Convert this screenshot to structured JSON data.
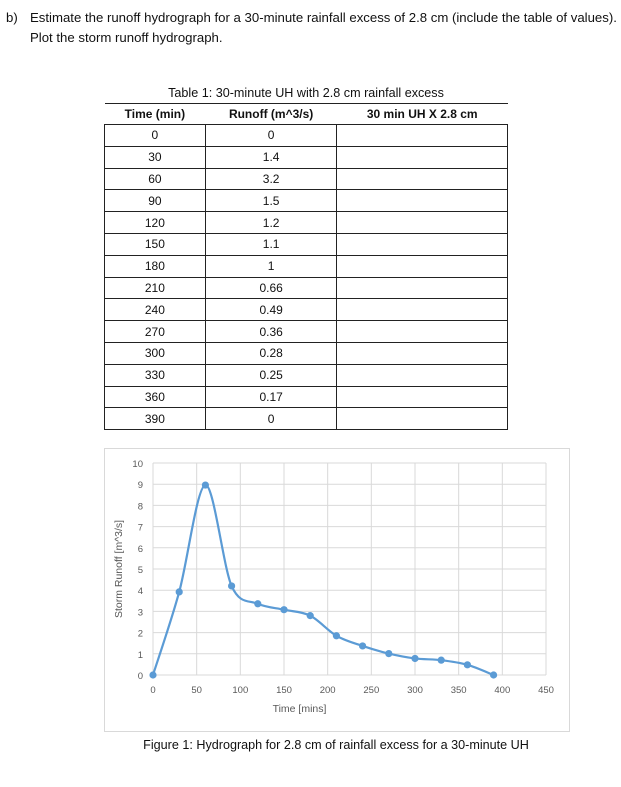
{
  "question": {
    "label": "b)",
    "text": "Estimate the runoff hydrograph for a 30-minute rainfall excess of 2.8 cm (include the table of values). Plot the storm runoff hydrograph."
  },
  "table": {
    "caption": "Table 1: 30-minute UH with 2.8 cm rainfall excess",
    "headers": [
      "Time (min)",
      "Runoff (m^3/s)",
      "30 min UH X 2.8 cm"
    ],
    "rows": [
      [
        "0",
        "0",
        ""
      ],
      [
        "30",
        "1.4",
        ""
      ],
      [
        "60",
        "3.2",
        ""
      ],
      [
        "90",
        "1.5",
        ""
      ],
      [
        "120",
        "1.2",
        ""
      ],
      [
        "150",
        "1.1",
        ""
      ],
      [
        "180",
        "1",
        ""
      ],
      [
        "210",
        "0.66",
        ""
      ],
      [
        "240",
        "0.49",
        ""
      ],
      [
        "270",
        "0.36",
        ""
      ],
      [
        "300",
        "0.28",
        ""
      ],
      [
        "330",
        "0.25",
        ""
      ],
      [
        "360",
        "0.17",
        ""
      ],
      [
        "390",
        "0",
        ""
      ]
    ]
  },
  "figure": {
    "caption": "Figure 1: Hydrograph for 2.8 cm of rainfall excess for a 30-minute UH"
  },
  "chart_data": {
    "type": "line",
    "title": "",
    "xlabel": "Time [mins]",
    "ylabel": "Storm Runoff [m^3/s]",
    "xlim": [
      0,
      450
    ],
    "ylim": [
      0,
      10
    ],
    "xticks": [
      0,
      50,
      100,
      150,
      200,
      250,
      300,
      350,
      400,
      450
    ],
    "yticks": [
      0,
      1,
      2,
      3,
      4,
      5,
      6,
      7,
      8,
      9,
      10
    ],
    "grid": true,
    "legend": "none",
    "smoothed": true,
    "marker": "circle",
    "color": "#5b9bd5",
    "series": [
      {
        "name": "Storm Runoff",
        "x": [
          0,
          30,
          60,
          90,
          120,
          150,
          180,
          210,
          240,
          270,
          300,
          330,
          360,
          390
        ],
        "values": [
          0,
          3.92,
          8.96,
          4.2,
          3.36,
          3.08,
          2.8,
          1.85,
          1.37,
          1.01,
          0.78,
          0.7,
          0.48,
          0
        ]
      }
    ]
  }
}
